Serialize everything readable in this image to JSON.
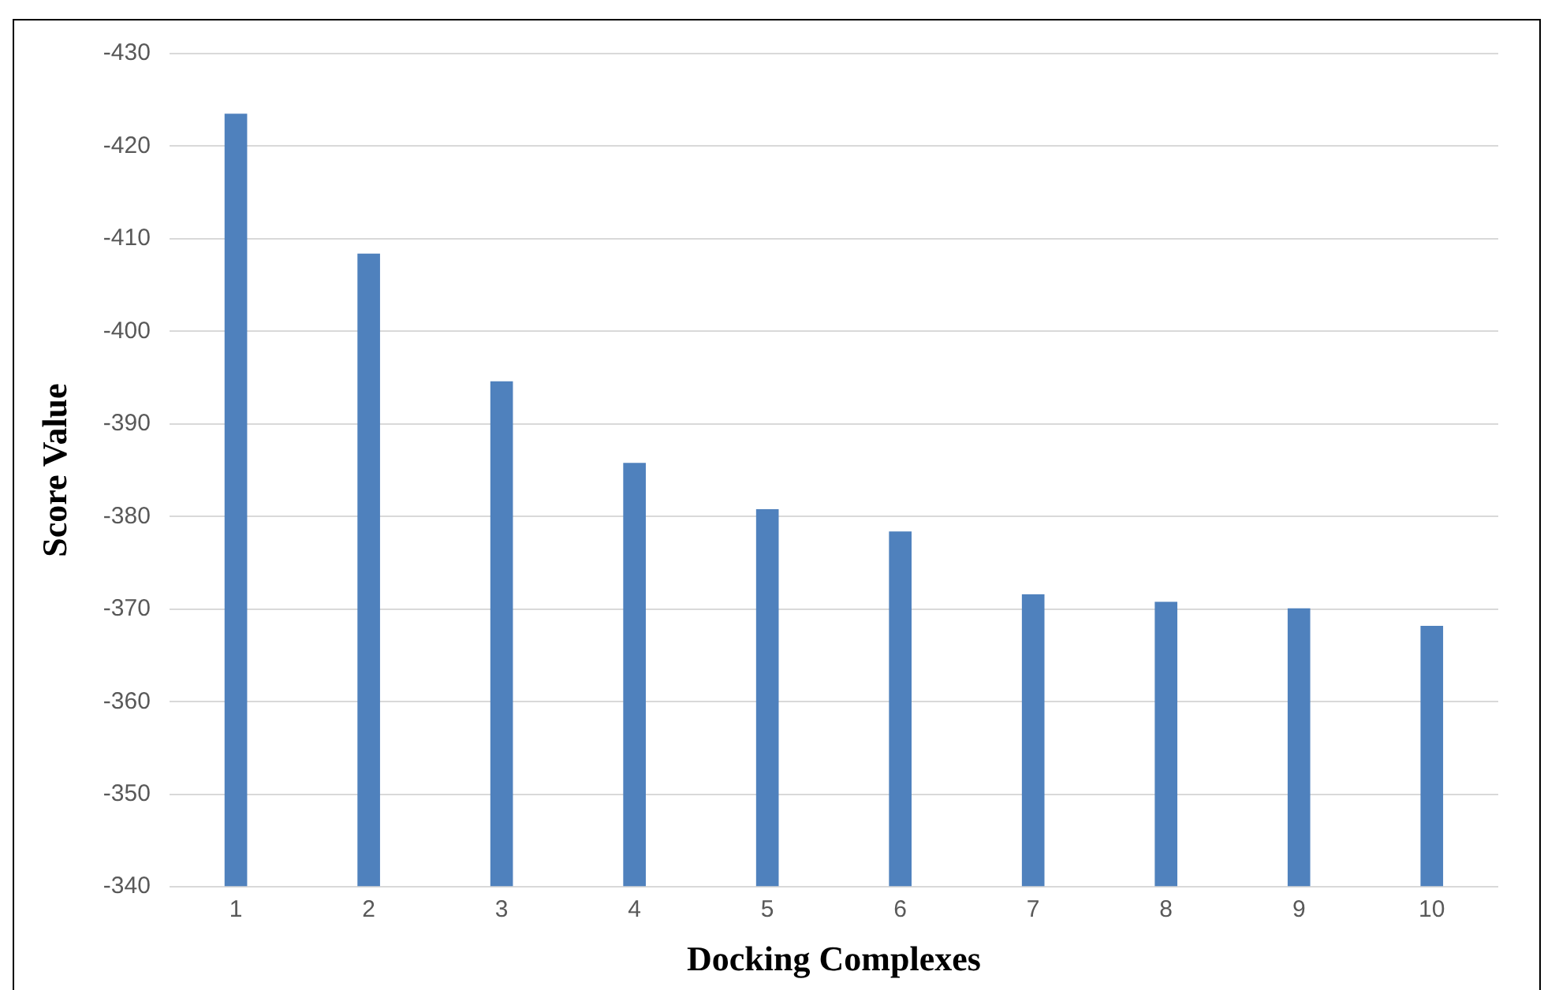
{
  "chart_data": {
    "type": "bar",
    "xlabel": "Docking Complexes",
    "ylabel": "Score Value",
    "categories": [
      "1",
      "2",
      "3",
      "4",
      "5",
      "6",
      "7",
      "8",
      "9",
      "10"
    ],
    "values": [
      -423.5,
      -408.4,
      -394.6,
      -385.8,
      -380.8,
      -378.4,
      -371.6,
      -370.8,
      -370.1,
      -368.2
    ],
    "color": "#4f81bd",
    "ylim": [
      -340,
      -430
    ],
    "yticks": [
      -340,
      -350,
      -360,
      -370,
      -380,
      -390,
      -400,
      -410,
      -420,
      -430
    ],
    "grid": "y",
    "legend": false
  }
}
